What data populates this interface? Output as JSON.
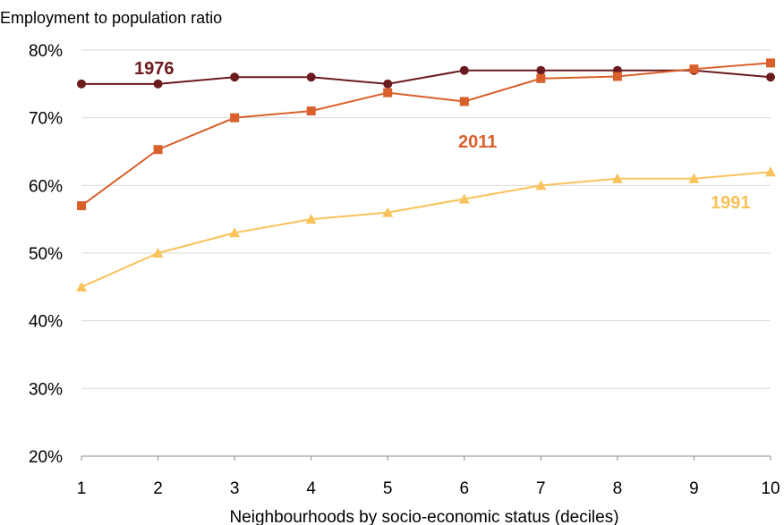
{
  "chart_data": {
    "type": "line",
    "title": "Employment to population ratio",
    "xlabel": "Neighbourhoods by socio-economic status (deciles)",
    "ylabel": "",
    "x": [
      1,
      2,
      3,
      4,
      5,
      6,
      7,
      8,
      9,
      10
    ],
    "x_tick_labels": [
      "1",
      "2",
      "3",
      "4",
      "5",
      "6",
      "7",
      "8",
      "9",
      "10"
    ],
    "ylim": [
      20,
      80
    ],
    "y_ticks": [
      20,
      30,
      40,
      50,
      60,
      70,
      80
    ],
    "y_tick_labels": [
      "20%",
      "30%",
      "40%",
      "50%",
      "60%",
      "70%",
      "80%"
    ],
    "grid": true,
    "series": [
      {
        "name": "1976",
        "color": "#6b1a1e",
        "marker": "circle",
        "values": [
          75,
          75,
          76,
          76,
          75,
          77,
          77,
          77,
          77,
          76
        ]
      },
      {
        "name": "2011",
        "color": "#d95f2b",
        "marker": "square",
        "values": [
          57,
          65.3,
          70,
          71,
          73.7,
          72.4,
          75.8,
          76.1,
          77.2,
          78.1
        ]
      },
      {
        "name": "1991",
        "color": "#f9c25a",
        "marker": "triangle",
        "values": [
          45,
          50,
          53,
          55,
          56,
          58,
          60,
          61,
          61,
          62
        ]
      }
    ]
  }
}
